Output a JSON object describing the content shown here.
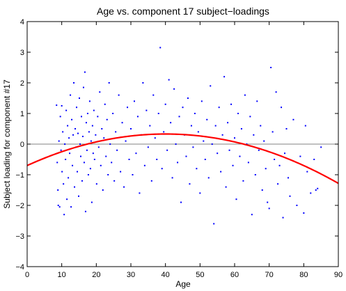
{
  "chart_data": {
    "type": "scatter",
    "title": "Age vs. component 17 subject−loadings",
    "xlabel": "Age",
    "ylabel": "Subject loading for component #17",
    "xlim": [
      0,
      90
    ],
    "ylim": [
      -4,
      4
    ],
    "x_ticks": [
      0,
      10,
      20,
      30,
      40,
      50,
      60,
      70,
      80,
      90
    ],
    "y_ticks": [
      -4,
      -3,
      -2,
      -1,
      0,
      1,
      2,
      3,
      4
    ],
    "x_tick_labels": [
      "0",
      "10",
      "20",
      "30",
      "40",
      "50",
      "60",
      "70",
      "80",
      "90"
    ],
    "y_tick_labels": [
      "−4",
      "−3",
      "−2",
      "−1",
      "0",
      "1",
      "2",
      "3",
      "4"
    ],
    "grid": false,
    "reference_line": {
      "y": 0,
      "color": "#808080"
    },
    "scatter": {
      "color": "#0000ff",
      "points": [
        [
          8.5,
          1.27
        ],
        [
          8.7,
          -0.6
        ],
        [
          8.9,
          -1.5
        ],
        [
          9.0,
          -2.0
        ],
        [
          9.2,
          0.1
        ],
        [
          9.4,
          -2.05
        ],
        [
          9.6,
          0.9
        ],
        [
          9.8,
          -0.2
        ],
        [
          10.0,
          1.25
        ],
        [
          10.1,
          -0.9
        ],
        [
          10.3,
          0.4
        ],
        [
          10.5,
          -1.3
        ],
        [
          10.7,
          -2.3
        ],
        [
          10.9,
          0.0
        ],
        [
          11.1,
          -0.5
        ],
        [
          11.3,
          1.1
        ],
        [
          11.5,
          -1.8
        ],
        [
          11.7,
          0.6
        ],
        [
          11.9,
          -1.1
        ],
        [
          12.1,
          0.2
        ],
        [
          12.3,
          -0.3
        ],
        [
          12.5,
          1.6
        ],
        [
          12.7,
          -2.05
        ],
        [
          12.9,
          0.8
        ],
        [
          13.1,
          -0.7
        ],
        [
          13.3,
          0.3
        ],
        [
          13.5,
          2.0
        ],
        [
          13.7,
          -1.4
        ],
        [
          13.9,
          0.5
        ],
        [
          14.1,
          -0.1
        ],
        [
          14.3,
          1.2
        ],
        [
          14.5,
          -0.9
        ],
        [
          14.7,
          0.35
        ],
        [
          14.9,
          -1.7
        ],
        [
          15.1,
          1.5
        ],
        [
          15.3,
          0.0
        ],
        [
          15.5,
          -0.4
        ],
        [
          15.7,
          0.9
        ],
        [
          15.9,
          -1.2
        ],
        [
          16.1,
          0.25
        ],
        [
          16.3,
          1.85
        ],
        [
          16.5,
          -0.6
        ],
        [
          16.7,
          2.35
        ],
        [
          16.9,
          -2.2
        ],
        [
          17.1,
          0.7
        ],
        [
          17.3,
          -0.2
        ],
        [
          17.5,
          1.0
        ],
        [
          17.7,
          -1.0
        ],
        [
          17.9,
          0.4
        ],
        [
          18.1,
          1.4
        ],
        [
          18.3,
          -0.8
        ],
        [
          18.5,
          0.1
        ],
        [
          18.7,
          -1.9
        ],
        [
          18.9,
          0.6
        ],
        [
          19.1,
          -0.3
        ],
        [
          19.3,
          1.1
        ],
        [
          19.5,
          -0.5
        ],
        [
          19.8,
          0.3
        ],
        [
          20.1,
          -1.3
        ],
        [
          20.4,
          0.9
        ],
        [
          20.7,
          -0.1
        ],
        [
          21.0,
          1.7
        ],
        [
          21.3,
          -0.7
        ],
        [
          21.6,
          0.5
        ],
        [
          21.9,
          -1.5
        ],
        [
          22.2,
          0.2
        ],
        [
          22.5,
          1.3
        ],
        [
          22.8,
          -0.4
        ],
        [
          23.1,
          0.8
        ],
        [
          23.4,
          -1.0
        ],
        [
          23.7,
          2.0
        ],
        [
          24.0,
          0.0
        ],
        [
          24.4,
          -0.6
        ],
        [
          24.8,
          1.0
        ],
        [
          25.2,
          -1.2
        ],
        [
          25.6,
          0.4
        ],
        [
          26.0,
          -0.2
        ],
        [
          26.5,
          1.6
        ],
        [
          27.0,
          -0.9
        ],
        [
          27.5,
          0.7
        ],
        [
          28.0,
          -1.4
        ],
        [
          28.5,
          0.1
        ],
        [
          29.0,
          1.2
        ],
        [
          29.5,
          -0.5
        ],
        [
          30.0,
          0.5
        ],
        [
          30.5,
          -1.0
        ],
        [
          31.0,
          1.4
        ],
        [
          31.5,
          -0.3
        ],
        [
          32.0,
          0.9
        ],
        [
          32.5,
          -1.6
        ],
        [
          33.0,
          0.3
        ],
        [
          33.5,
          2.0
        ],
        [
          34.0,
          -0.7
        ],
        [
          34.5,
          1.1
        ],
        [
          35.0,
          -0.1
        ],
        [
          35.5,
          0.6
        ],
        [
          36.0,
          -1.2
        ],
        [
          36.5,
          1.6
        ],
        [
          37.0,
          0.2
        ],
        [
          37.5,
          -0.5
        ],
        [
          38.0,
          1.0
        ],
        [
          38.5,
          3.15
        ],
        [
          39.0,
          -0.8
        ],
        [
          39.5,
          0.4
        ],
        [
          40.0,
          1.3
        ],
        [
          40.5,
          -0.2
        ],
        [
          41.0,
          2.1
        ],
        [
          41.5,
          0.7
        ],
        [
          42.0,
          -1.1
        ],
        [
          42.5,
          1.8
        ],
        [
          43.0,
          0.0
        ],
        [
          43.5,
          -0.6
        ],
        [
          44.0,
          0.9
        ],
        [
          44.5,
          -1.9
        ],
        [
          45.0,
          1.2
        ],
        [
          45.5,
          0.3
        ],
        [
          46.0,
          -0.4
        ],
        [
          46.5,
          1.5
        ],
        [
          47.0,
          -1.3
        ],
        [
          47.5,
          0.6
        ],
        [
          48.0,
          -0.1
        ],
        [
          48.5,
          1.0
        ],
        [
          49.0,
          -0.8
        ],
        [
          49.5,
          0.4
        ],
        [
          50.0,
          -1.6
        ],
        [
          50.5,
          1.4
        ],
        [
          51.0,
          0.1
        ],
        [
          51.5,
          -0.5
        ],
        [
          52.0,
          0.8
        ],
        [
          52.5,
          -1.1
        ],
        [
          53.0,
          1.9
        ],
        [
          53.5,
          0.0
        ],
        [
          54.0,
          -2.6
        ],
        [
          54.5,
          0.6
        ],
        [
          55.0,
          -0.3
        ],
        [
          55.5,
          1.2
        ],
        [
          56.0,
          -0.9
        ],
        [
          56.5,
          0.3
        ],
        [
          57.0,
          2.2
        ],
        [
          57.5,
          -1.4
        ],
        [
          58.0,
          0.7
        ],
        [
          58.5,
          -0.2
        ],
        [
          59.0,
          1.3
        ],
        [
          59.5,
          -0.7
        ],
        [
          60.0,
          0.2
        ],
        [
          60.5,
          -1.8
        ],
        [
          61.0,
          1.0
        ],
        [
          61.5,
          -0.4
        ],
        [
          62.0,
          0.5
        ],
        [
          62.5,
          -1.2
        ],
        [
          63.0,
          1.6
        ],
        [
          63.5,
          0.0
        ],
        [
          64.0,
          -0.6
        ],
        [
          64.5,
          0.9
        ],
        [
          65.0,
          -2.3
        ],
        [
          65.5,
          0.3
        ],
        [
          66.0,
          -1.0
        ],
        [
          66.5,
          1.4
        ],
        [
          67.0,
          -0.2
        ],
        [
          67.5,
          0.6
        ],
        [
          68.0,
          -1.5
        ],
        [
          68.5,
          0.1
        ],
        [
          69.0,
          -0.8
        ],
        [
          69.5,
          -1.9
        ],
        [
          70.0,
          -2.1
        ],
        [
          70.5,
          2.5
        ],
        [
          71.0,
          0.4
        ],
        [
          71.5,
          -0.5
        ],
        [
          72.0,
          1.7
        ],
        [
          72.5,
          -1.3
        ],
        [
          73.0,
          -0.7
        ],
        [
          73.5,
          1.2
        ],
        [
          74.0,
          -2.4
        ],
        [
          74.5,
          -0.3
        ],
        [
          75.0,
          0.5
        ],
        [
          75.5,
          -1.1
        ],
        [
          76.0,
          -1.7
        ],
        [
          77.0,
          0.8
        ],
        [
          78.0,
          -2.0
        ],
        [
          79.0,
          -0.4
        ],
        [
          80.0,
          -2.25
        ],
        [
          80.5,
          0.6
        ],
        [
          81.0,
          -0.9
        ],
        [
          82.0,
          -1.6
        ],
        [
          83.0,
          -0.5
        ],
        [
          83.5,
          -1.5
        ],
        [
          84.0,
          -1.45
        ],
        [
          85.0,
          -0.1
        ]
      ]
    },
    "fit_curve": {
      "type": "quadratic",
      "color": "#ff0000",
      "coefficients": [
        -0.7,
        0.0515,
        -0.000644
      ]
    }
  }
}
